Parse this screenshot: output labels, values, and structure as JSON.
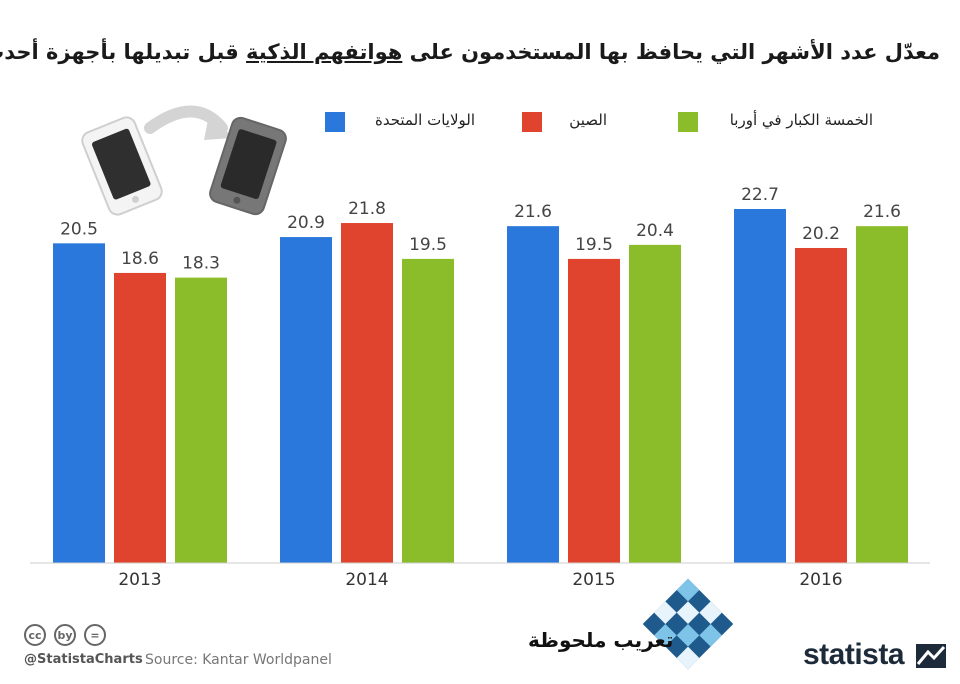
{
  "title": {
    "before": "معدّل عدد الأشهر التي يحافظ بها المستخدمون على ",
    "underlined": "هواتفهم الذكية",
    "after": " قبل تبديلها بأجهزة أحدث"
  },
  "colors": {
    "us": "#2a78db",
    "china": "#e0432e",
    "europe": "#8bbd2a",
    "axis": "#cccccc"
  },
  "legend": [
    {
      "name": "الولايات المتحدة",
      "color": "#2a78db"
    },
    {
      "name": "الصين",
      "color": "#e0432e"
    },
    {
      "name": "الخمسة الكبار في أوربا",
      "color": "#8bbd2a"
    }
  ],
  "chart_data": {
    "type": "bar",
    "title": "معدّل عدد الأشهر التي يحافظ بها المستخدمون على هواتفهم الذكية قبل تبديلها بأجهزة أحدث",
    "categories": [
      "2013",
      "2014",
      "2015",
      "2016"
    ],
    "series": [
      {
        "name": "الولايات المتحدة",
        "values": [
          20.5,
          20.9,
          21.6,
          22.7
        ]
      },
      {
        "name": "الصين",
        "values": [
          18.6,
          21.8,
          19.5,
          20.2
        ]
      },
      {
        "name": "الخمسة الكبار في أوربا",
        "values": [
          18.3,
          19.5,
          20.4,
          21.6
        ]
      }
    ],
    "xlabel": "",
    "ylabel": "",
    "ylim": [
      0,
      25
    ],
    "grid": false,
    "legend_position": "top"
  },
  "footer": {
    "handle": "@StatistaCharts",
    "source": "Source: Kantar Worldpanel",
    "translation_credit": "تعريب ملحوظة",
    "brand": "statista",
    "cc_icons": [
      "cc",
      "by",
      "="
    ]
  },
  "illustration": {
    "icon": "phone-upgrade-icon"
  }
}
